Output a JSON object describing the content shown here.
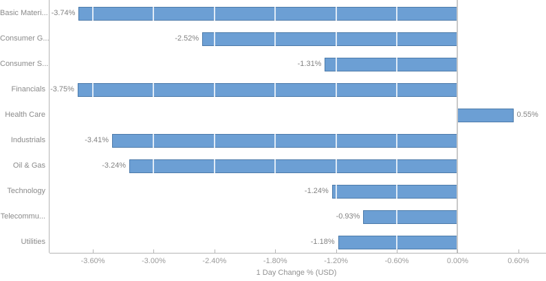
{
  "chart_data": {
    "type": "bar",
    "orientation": "horizontal",
    "title": "",
    "xlabel": "1 Day Change % (USD)",
    "ylabel": "",
    "categories": [
      "Basic Materi...",
      "Consumer G...",
      "Consumer S...",
      "Financials",
      "Health Care",
      "Industrials",
      "Oil & Gas",
      "Technology",
      "Telecommu...",
      "Utilities"
    ],
    "values": [
      -3.74,
      -2.52,
      -1.31,
      -3.75,
      0.55,
      -3.41,
      -3.24,
      -1.24,
      -0.93,
      -1.18
    ],
    "value_labels": [
      "-3.74%",
      "-2.52%",
      "-1.31%",
      "-3.75%",
      "0.55%",
      "-3.41%",
      "-3.24%",
      "-1.24%",
      "-0.93%",
      "-1.18%"
    ],
    "xlim": [
      -4.028,
      0.845
    ],
    "ticks": [
      -3.6,
      -3.0,
      -2.4,
      -1.8,
      -1.2,
      -0.6,
      0.0,
      0.6
    ],
    "tick_labels": [
      "-3.60%",
      "-3.00%",
      "-2.40%",
      "-1.80%",
      "-1.20%",
      "-0.60%",
      "0.00%",
      "0.60%"
    ],
    "legend": null,
    "grid": "vertical ticks drawn white over bars, zero line gray",
    "colors": {
      "bar_fill": "#6C9FD4",
      "bar_border": "#4B79A8",
      "axis_line": "#b3b3b3",
      "zero_line": "#c9c9c9",
      "grid_line": "#ffffff",
      "category_text": "#8a8a8a",
      "value_text": "#828282",
      "tick_text": "#9a9a9a"
    }
  }
}
